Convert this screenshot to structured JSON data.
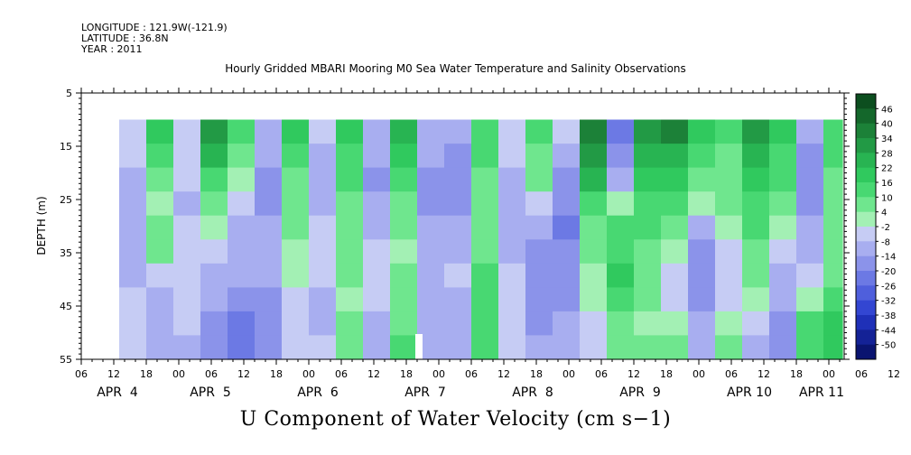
{
  "header": {
    "longitude": "LONGITUDE : 121.9W(-121.9)",
    "latitude": "LATITUDE : 36.8N",
    "year": "YEAR : 2011"
  },
  "chart_data": {
    "type": "heatmap",
    "title": "Hourly Gridded MBARI Mooring M0 Sea Water Temperature and Salinity Observations",
    "xlabel": "U Component of Water Velocity (cm s−1)",
    "ylabel": "DEPTH (m)",
    "ylim": [
      55,
      5
    ],
    "y_ticks": [
      5,
      15,
      25,
      35,
      45,
      55
    ],
    "x_hour_ticks": [
      "06",
      "12",
      "18",
      "00",
      "06",
      "12",
      "18",
      "00",
      "06",
      "12",
      "18",
      "00",
      "06",
      "12",
      "18",
      "00",
      "06",
      "12",
      "18",
      "00",
      "06",
      "12",
      "18",
      "00",
      "06",
      "12",
      "18",
      "00",
      "06",
      "12",
      "18",
      "00",
      "06"
    ],
    "x_day_labels": [
      "APR  4",
      "APR  5",
      "APR  6",
      "APR  7",
      "APR  8",
      "APR  9",
      "APR 10",
      "APR 11"
    ],
    "data_depth_range": [
      10,
      55
    ],
    "data_time_range": "2011-04-04 13:00 to 2011-04-11 09:00",
    "colorbar": {
      "levels": [
        46,
        40,
        34,
        28,
        22,
        16,
        10,
        4,
        -2,
        -8,
        -14,
        -20,
        -26,
        -32,
        -38,
        -44,
        -50
      ],
      "colors": [
        "#0c4e1f",
        "#14672b",
        "#1c8138",
        "#229a45",
        "#28b452",
        "#30c95e",
        "#48d872",
        "#6fe68e",
        "#a3f0b4",
        "#c6ccf4",
        "#a8aef0",
        "#8b93ea",
        "#6c79e4",
        "#4f5fdc",
        "#3346d2",
        "#1f30b8",
        "#142296",
        "#0a1470"
      ]
    },
    "columns": [
      {
        "t": "04 13:00",
        "u": [
          -6,
          -8,
          -10,
          -12,
          -14,
          -12,
          -10,
          -8,
          -6,
          -8
        ]
      },
      {
        "t": "04 18:00",
        "u": [
          20,
          14,
          8,
          2,
          4,
          6,
          -4,
          -10,
          -12,
          -10
        ]
      },
      {
        "t": "04 23:00",
        "u": [
          -4,
          -6,
          -8,
          -10,
          -8,
          -6,
          -4,
          -6,
          -8,
          -10
        ]
      },
      {
        "t": "05 04:00",
        "u": [
          28,
          22,
          14,
          6,
          -2,
          -8,
          -12,
          -14,
          -16,
          -18
        ]
      },
      {
        "t": "05 09:00",
        "u": [
          10,
          6,
          -2,
          -8,
          -10,
          -10,
          -14,
          -18,
          -22,
          -24
        ]
      },
      {
        "t": "05 14:00",
        "u": [
          -10,
          -14,
          -18,
          -16,
          -12,
          -10,
          -12,
          -16,
          -18,
          -16
        ]
      },
      {
        "t": "05 19:00",
        "u": [
          16,
          12,
          8,
          6,
          4,
          2,
          -2,
          -6,
          -8,
          -6
        ]
      },
      {
        "t": "06 00:00",
        "u": [
          -8,
          -12,
          -14,
          -12,
          -8,
          -6,
          -6,
          -10,
          -12,
          -8
        ]
      },
      {
        "t": "06 05:00",
        "u": [
          18,
          14,
          10,
          8,
          6,
          6,
          4,
          2,
          4,
          8
        ]
      },
      {
        "t": "06 10:00",
        "u": [
          -10,
          -14,
          -16,
          -14,
          -10,
          -6,
          -4,
          -6,
          -10,
          -12
        ]
      },
      {
        "t": "06 15:00",
        "u": [
          22,
          18,
          12,
          6,
          4,
          2,
          4,
          6,
          8,
          10
        ]
      },
      {
        "t": "06 20:00",
        "u": [
          -12,
          -14,
          -16,
          -16,
          -14,
          -12,
          -10,
          -10,
          -12,
          -14
        ]
      },
      {
        "t": "07 01:00",
        "u": [
          -14,
          -16,
          -18,
          -16,
          -12,
          -10,
          -8,
          -10,
          -12,
          -12
        ]
      },
      {
        "t": "07 06:00",
        "u": [
          14,
          10,
          6,
          4,
          6,
          8,
          10,
          12,
          14,
          10
        ]
      },
      {
        "t": "07 11:00",
        "u": [
          -6,
          -8,
          -10,
          -12,
          -14,
          -10,
          -6,
          -4,
          -6,
          -8
        ]
      },
      {
        "t": "07 16:00",
        "u": [
          10,
          8,
          4,
          -4,
          -12,
          -18,
          -20,
          -18,
          -16,
          -14
        ]
      },
      {
        "t": "07 21:00",
        "u": [
          -8,
          -12,
          -16,
          -20,
          -22,
          -20,
          -18,
          -16,
          -14,
          -12
        ]
      },
      {
        "t": "08 02:00",
        "u": [
          38,
          30,
          22,
          14,
          8,
          4,
          2,
          -2,
          -6,
          -8
        ]
      },
      {
        "t": "08 07:00",
        "u": [
          -26,
          -18,
          -10,
          2,
          10,
          14,
          16,
          12,
          8,
          4
        ]
      },
      {
        "t": "08 12:00",
        "u": [
          30,
          24,
          18,
          14,
          10,
          8,
          6,
          4,
          2,
          6
        ]
      },
      {
        "t": "08 17:00",
        "u": [
          34,
          26,
          18,
          10,
          4,
          -2,
          -6,
          -4,
          2,
          8
        ]
      },
      {
        "t": "08 22:00",
        "u": [
          16,
          12,
          6,
          -2,
          -14,
          -20,
          -20,
          -16,
          -12,
          -10
        ]
      },
      {
        "t": "09 03:00",
        "u": [
          10,
          8,
          6,
          4,
          2,
          -4,
          -8,
          -6,
          -2,
          4
        ]
      },
      {
        "t": "09 08:00",
        "u": [
          32,
          26,
          20,
          14,
          10,
          8,
          4,
          -2,
          -8,
          -14
        ]
      },
      {
        "t": "09 13:00",
        "u": [
          20,
          14,
          10,
          4,
          -2,
          -8,
          -12,
          -14,
          -16,
          -16
        ]
      },
      {
        "t": "09 18:00",
        "u": [
          -12,
          -16,
          -18,
          -16,
          -14,
          -10,
          -6,
          2,
          10,
          14
        ]
      },
      {
        "t": "09 23:00",
        "u": [
          14,
          12,
          8,
          6,
          4,
          6,
          8,
          12,
          16,
          20
        ]
      },
      {
        "t": "10 04:00",
        "u": [
          22,
          18,
          12,
          8,
          4,
          2,
          -2,
          -6,
          -10,
          -8
        ]
      },
      {
        "t": "10 09:00",
        "u": [
          -12,
          -14,
          -12,
          -6,
          2,
          8,
          12,
          14,
          14,
          12
        ]
      },
      {
        "t": "10 14:00",
        "u": [
          -6,
          -8,
          -10,
          -12,
          -10,
          -4,
          4,
          10,
          12,
          10
        ]
      },
      {
        "t": "10 19:00",
        "u": [
          24,
          18,
          12,
          4,
          -6,
          -18,
          -24,
          -26,
          -24,
          -20
        ]
      },
      {
        "t": "11 00:00",
        "u": [
          22,
          16,
          10,
          4,
          -2,
          -10,
          -16,
          -18,
          -14,
          -8
        ]
      },
      {
        "t": "11 05:00",
        "u": [
          12,
          8,
          4,
          2,
          0,
          2,
          4,
          6,
          8,
          10
        ]
      },
      {
        "t": "11 09:00",
        "u": [
          -10,
          -10,
          -8,
          -6,
          -4,
          -2,
          0,
          2,
          4,
          6
        ]
      }
    ]
  }
}
